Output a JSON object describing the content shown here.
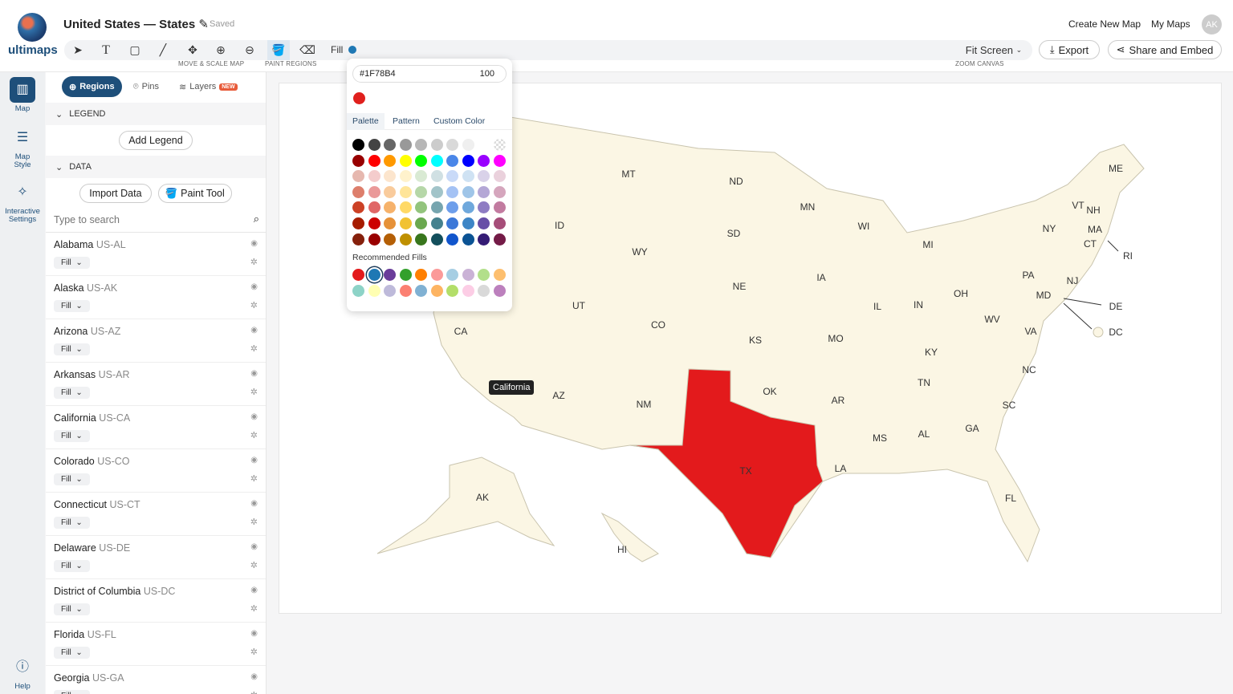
{
  "app": {
    "logo_text": "ultimaps",
    "title": "United States — States",
    "status": "Saved"
  },
  "header": {
    "create_new_map": "Create New Map",
    "my_maps": "My Maps",
    "avatar_initials": "AK"
  },
  "toolbar": {
    "tools": [
      "select",
      "text",
      "rectangle",
      "line",
      "move",
      "zoom-in",
      "zoom-out",
      "paint-bucket",
      "eraser"
    ],
    "move_caption": "MOVE & SCALE MAP",
    "paint_caption": "PAINT REGIONS",
    "fill_label": "Fill",
    "fill_color": "#1F78B4",
    "zoom_select": "Fit Screen",
    "zoom_caption": "ZOOM CANVAS",
    "export": "Export",
    "share": "Share and Embed"
  },
  "rail": [
    {
      "label": "Map",
      "icon": "map-icon"
    },
    {
      "label": "Map Style",
      "icon": "sliders-icon"
    },
    {
      "label": "Interactive Settings",
      "icon": "pointer-icon"
    },
    {
      "label": "Help",
      "icon": "help-icon"
    }
  ],
  "sidebar": {
    "tabs": {
      "regions": "Regions",
      "pins": "Pins",
      "layers": "Layers",
      "layers_badge": "NEW"
    },
    "legend_header": "LEGEND",
    "add_legend": "Add Legend",
    "data_header": "DATA",
    "import_data": "Import Data",
    "paint_tool": "Paint Tool",
    "search_placeholder": "Type to search",
    "regions": [
      {
        "name": "Alabama",
        "code": "US-AL",
        "fill": "Fill"
      },
      {
        "name": "Alaska",
        "code": "US-AK",
        "fill": "Fill"
      },
      {
        "name": "Arizona",
        "code": "US-AZ",
        "fill": "Fill"
      },
      {
        "name": "Arkansas",
        "code": "US-AR",
        "fill": "Fill"
      },
      {
        "name": "California",
        "code": "US-CA",
        "fill": "Fill"
      },
      {
        "name": "Colorado",
        "code": "US-CO",
        "fill": "Fill"
      },
      {
        "name": "Connecticut",
        "code": "US-CT",
        "fill": "Fill"
      },
      {
        "name": "Delaware",
        "code": "US-DE",
        "fill": "Fill"
      },
      {
        "name": "District of Columbia",
        "code": "US-DC",
        "fill": "Fill"
      },
      {
        "name": "Florida",
        "code": "US-FL",
        "fill": "Fill"
      },
      {
        "name": "Georgia",
        "code": "US-GA",
        "fill": "Fill"
      }
    ]
  },
  "color_picker": {
    "hex": "#1F78B4",
    "opacity": "100",
    "current_color": "#E0201D",
    "tabs": [
      "Palette",
      "Pattern",
      "Custom Color"
    ],
    "active_tab": "Palette",
    "recommended_label": "Recommended Fills",
    "palette": [
      [
        "#000000",
        "#444444",
        "#666666",
        "#999999",
        "#b7b7b7",
        "#cccccc",
        "#d9d9d9",
        "#efefef",
        null,
        "transparent"
      ],
      [
        "#980000",
        "#ff0000",
        "#ff9900",
        "#ffff00",
        "#00ff00",
        "#00ffff",
        "#4a86e8",
        "#0000ff",
        "#9900ff",
        "#ff00ff"
      ],
      [
        "#e6b8af",
        "#f4cccc",
        "#fce5cd",
        "#fff2cc",
        "#d9ead3",
        "#d0e0e3",
        "#c9daf8",
        "#cfe2f3",
        "#d9d2e9",
        "#ead1dc"
      ],
      [
        "#dd7e6b",
        "#ea9999",
        "#f9cb9c",
        "#ffe599",
        "#b6d7a8",
        "#a2c4c9",
        "#a4c2f4",
        "#9fc5e8",
        "#b4a7d6",
        "#d5a6bd"
      ],
      [
        "#cc4125",
        "#e06666",
        "#f6b26b",
        "#ffd966",
        "#93c47d",
        "#76a5af",
        "#6d9eeb",
        "#6fa8dc",
        "#8e7cc3",
        "#c27ba0"
      ],
      [
        "#a61c00",
        "#cc0000",
        "#e69138",
        "#f1c232",
        "#6aa84f",
        "#45818e",
        "#3c78d8",
        "#3d85c6",
        "#674ea7",
        "#a64d79"
      ],
      [
        "#85200c",
        "#990000",
        "#b45f06",
        "#bf9000",
        "#38761d",
        "#134f5c",
        "#1155cc",
        "#0b5394",
        "#351c75",
        "#741b47"
      ]
    ],
    "recommended": [
      [
        "#e31a1c",
        "#1f78b4",
        "#6a3d9a",
        "#33a02c",
        "#ff7f00",
        "#fb9a99",
        "#a6cee3",
        "#cab2d6",
        "#b2df8a",
        "#fdbf6f"
      ],
      [
        "#8dd3c7",
        "#ffffb3",
        "#bebada",
        "#fb8072",
        "#80b1d3",
        "#fdb462",
        "#b3de69",
        "#fccde5",
        "#d9d9d9",
        "#bc80bd"
      ]
    ],
    "selected_recommended": "#1f78b4"
  },
  "map": {
    "state_fill": "#fbf6e4",
    "highlight_fill": "#e31a1c",
    "highlighted_state": "TX",
    "tooltip": "California",
    "labels": [
      "MT",
      "ND",
      "MN",
      "ME",
      "VT",
      "NH",
      "WI",
      "NY",
      "MA",
      "CT",
      "RI",
      "ID",
      "SD",
      "MI",
      "WY",
      "IA",
      "PA",
      "NJ",
      "NE",
      "MD",
      "DE",
      "DC",
      "UT",
      "IL",
      "IN",
      "OH",
      "WV",
      "VA",
      "CA",
      "CO",
      "KS",
      "MO",
      "KY",
      "NC",
      "TN",
      "OK",
      "AR",
      "AZ",
      "NM",
      "SC",
      "MS",
      "AL",
      "GA",
      "TX",
      "LA",
      "AK",
      "FL",
      "HI"
    ]
  }
}
